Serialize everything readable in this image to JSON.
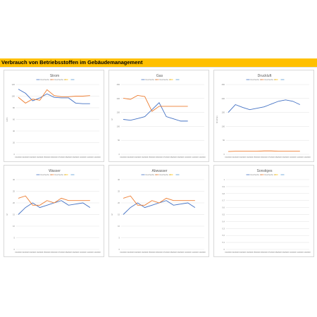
{
  "header": {
    "title": "Verbrauch von Betriebsstoffen im Gebäudemanagement"
  },
  "colors": {
    "series1": "#4472c4",
    "series2": "#ed7d31",
    "series3": "#ffc000",
    "series4": "#5b9bd5",
    "grid": "#d9d9d9",
    "text": "#595959"
  },
  "legend_entries": [
    "Durchschn. 1",
    "Durchschn. 2",
    "",
    ""
  ],
  "chart_data": [
    {
      "id": "strom",
      "type": "line",
      "title": "Strom",
      "ylabel": "kWh",
      "ylim": [
        0,
        120
      ],
      "yticks": [
        "0",
        "20",
        "40",
        "60",
        "80",
        "100",
        "120"
      ],
      "categories": [
        "01/2020",
        "02/2020",
        "03/2020",
        "04/2020",
        "05/2020",
        "06/2020",
        "07/2020",
        "08/2020",
        "09/2020",
        "10/2020",
        "11/2020",
        "12/2020"
      ],
      "series": [
        {
          "values": [
            112,
            105,
            92,
            97,
            104,
            98,
            97,
            97,
            88,
            87,
            87,
            null
          ]
        },
        {
          "values": [
            98,
            88,
            95,
            93,
            111,
            101,
            99,
            99,
            100,
            100,
            101,
            null
          ]
        }
      ]
    },
    {
      "id": "gas",
      "type": "line",
      "title": "Gas",
      "ylabel": "m³",
      "ylim": [
        0,
        250
      ],
      "yticks": [
        "0",
        "50",
        "100",
        "150",
        "200",
        "250"
      ],
      "categories": [
        "01/2020",
        "02/2020",
        "03/2020",
        "04/2020",
        "05/2020",
        "06/2020",
        "07/2020",
        "08/2020",
        "09/2020",
        "10/2020",
        "11/2020",
        "12/2020"
      ],
      "series": [
        {
          "values": [
            125,
            122,
            128,
            135,
            160,
            185,
            135,
            127,
            119,
            119,
            null,
            null
          ]
        },
        {
          "values": [
            201,
            197,
            211,
            207,
            154,
            172,
            172,
            172,
            172,
            172,
            null,
            null
          ]
        }
      ]
    },
    {
      "id": "druckluft",
      "type": "line",
      "title": "Druckluft",
      "ylabel": "Nm³/min",
      "ylim": [
        0,
        250
      ],
      "yticks": [
        "0",
        "50",
        "100",
        "150",
        "200",
        "250"
      ],
      "categories": [
        "01/2020",
        "02/2020",
        "03/2020",
        "04/2020",
        "05/2020",
        "06/2020",
        "07/2020",
        "08/2020",
        "09/2020",
        "10/2020",
        "11/2020",
        "12/2020"
      ],
      "series": [
        {
          "values": [
            150,
            178,
            168,
            160,
            165,
            170,
            180,
            190,
            195,
            190,
            178,
            null
          ]
        },
        {
          "values": [
            10,
            11,
            11,
            11,
            11,
            12,
            12,
            11,
            11,
            11,
            11,
            null
          ]
        }
      ]
    },
    {
      "id": "wasser",
      "type": "line",
      "title": "Wasser",
      "ylabel": "m³",
      "ylim": [
        0,
        30
      ],
      "yticks": [
        "0",
        "5",
        "10",
        "15",
        "20",
        "25",
        "30"
      ],
      "categories": [
        "01/2020",
        "02/2020",
        "03/2020",
        "04/2020",
        "05/2020",
        "06/2020",
        "07/2020",
        "08/2020",
        "09/2020",
        "10/2020",
        "11/2020",
        "12/2020"
      ],
      "series": [
        {
          "values": [
            15,
            18,
            20,
            18,
            19,
            20,
            21,
            19,
            19.5,
            20,
            18,
            null
          ]
        },
        {
          "values": [
            22,
            23,
            19,
            19,
            21,
            20,
            22,
            21,
            21,
            21,
            21,
            null
          ]
        }
      ]
    },
    {
      "id": "abwasser",
      "type": "line",
      "title": "Abwasser",
      "ylabel": "m³",
      "ylim": [
        0,
        30
      ],
      "yticks": [
        "0",
        "5",
        "10",
        "15",
        "20",
        "25",
        "30"
      ],
      "categories": [
        "01/2020",
        "02/2020",
        "03/2020",
        "04/2020",
        "05/2020",
        "06/2020",
        "07/2020",
        "08/2020",
        "09/2020",
        "10/2020",
        "11/2020",
        "12/2020"
      ],
      "series": [
        {
          "values": [
            15,
            18,
            20,
            18,
            19,
            20,
            21,
            19,
            19.5,
            20,
            18,
            null
          ]
        },
        {
          "values": [
            22,
            23,
            19,
            19,
            21,
            20,
            22,
            21,
            21,
            21,
            21,
            null
          ]
        }
      ]
    },
    {
      "id": "sonstiges",
      "type": "line",
      "title": "Sonstiges",
      "ylabel": "",
      "ylim": [
        0,
        1
      ],
      "yticks": [
        "0",
        "0,1",
        "0,2",
        "0,3",
        "0,4",
        "0,5",
        "0,6",
        "0,7",
        "0,8",
        "0,9",
        "1"
      ],
      "categories": [
        "01/2020",
        "02/2020",
        "03/2020",
        "04/2020",
        "05/2020",
        "06/2020",
        "07/2020",
        "08/2020",
        "09/2020",
        "10/2020",
        "11/2020",
        "12/2020"
      ],
      "series": []
    }
  ]
}
